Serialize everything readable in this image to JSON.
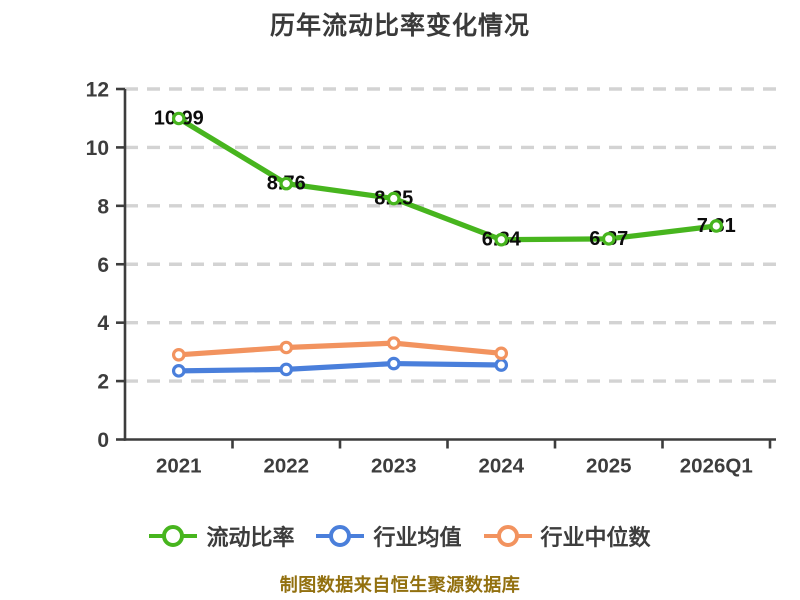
{
  "title": "历年流动比率变化情况",
  "footer": "制图数据来自恒生聚源数据库",
  "colors": {
    "current_ratio": "#47b51e",
    "industry_avg": "#4a7fdb",
    "industry_median": "#f2935f",
    "grid": "#d3d3d3",
    "axis": "#3d3d3d",
    "value_label": "#0c0c0c",
    "footer_text": "#92700f"
  },
  "legend": [
    {
      "label": "流动比率",
      "color": "#47b51e"
    },
    {
      "label": "行业均值",
      "color": "#4a7fdb"
    },
    {
      "label": "行业中位数",
      "color": "#f2935f"
    }
  ],
  "chart_data": {
    "type": "line",
    "title": "历年流动比率变化情况",
    "categories": [
      "2021",
      "2022",
      "2023",
      "2024",
      "2025",
      "2026Q1"
    ],
    "series": [
      {
        "name": "流动比率",
        "color": "#47b51e",
        "show_labels": true,
        "values": [
          10.99,
          8.76,
          8.25,
          6.84,
          6.87,
          7.31
        ]
      },
      {
        "name": "行业均值",
        "color": "#4a7fdb",
        "show_labels": false,
        "values": [
          2.35,
          2.4,
          2.6,
          2.55,
          null,
          null
        ]
      },
      {
        "name": "行业中位数",
        "color": "#f2935f",
        "show_labels": false,
        "values": [
          2.9,
          3.15,
          3.3,
          2.95,
          null,
          null
        ]
      }
    ],
    "xlabel": "",
    "ylabel": "",
    "ylim": [
      0,
      12
    ],
    "yticks": [
      0,
      2,
      4,
      6,
      8,
      10,
      12
    ],
    "grid": "horizontal-dashed",
    "legend_position": "bottom",
    "marker": "white-circle-colored-ring",
    "source_note": "制图数据来自恒生聚源数据库"
  }
}
